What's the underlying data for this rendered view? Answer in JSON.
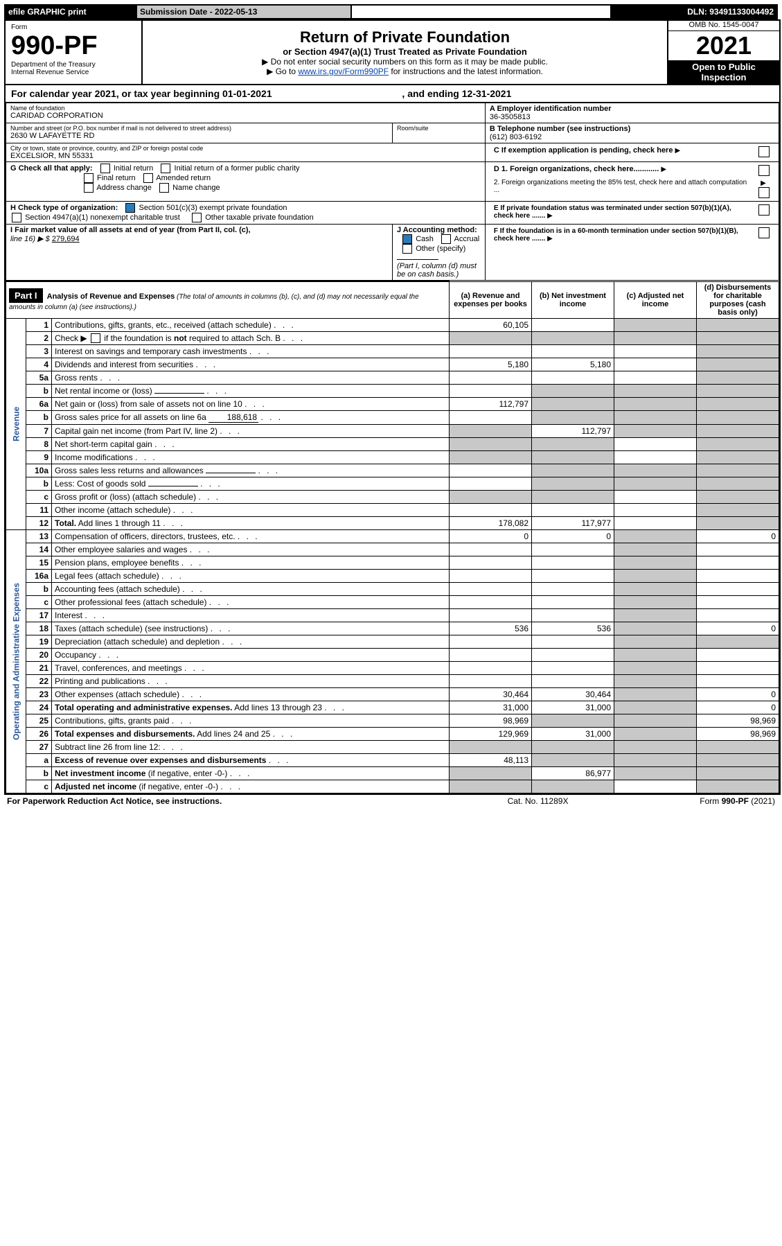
{
  "topbar": {
    "efile": "efile GRAPHIC print",
    "submission_label": "Submission Date - 2022-05-13",
    "dln": "DLN: 93491133004492"
  },
  "header": {
    "form_word": "Form",
    "form_no": "990-PF",
    "dept": "Department of the Treasury",
    "irs": "Internal Revenue Service",
    "title": "Return of Private Foundation",
    "subtitle": "or Section 4947(a)(1) Trust Treated as Private Foundation",
    "inst1": "▶ Do not enter social security numbers on this form as it may be made public.",
    "inst2_pre": "▶ Go to ",
    "inst2_link": "www.irs.gov/Form990PF",
    "inst2_post": " for instructions and the latest information.",
    "omb": "OMB No. 1545-0047",
    "year": "2021",
    "open_pub": "Open to Public Inspection"
  },
  "calendar": {
    "text_pre": "For calendar year 2021, or tax year beginning ",
    "begin": "01-01-2021",
    "mid": ", and ending ",
    "end": "12-31-2021"
  },
  "id_block": {
    "name_lbl": "Name of foundation",
    "name": "CARIDAD CORPORATION",
    "addr_lbl": "Number and street (or P.O. box number if mail is not delivered to street address)",
    "addr": "2630 W LAFAYETTE RD",
    "room_lbl": "Room/suite",
    "city_lbl": "City or town, state or province, country, and ZIP or foreign postal code",
    "city": "EXCELSIOR, MN  55331",
    "a_lbl": "A Employer identification number",
    "a_val": "36-3505813",
    "b_lbl": "B Telephone number (see instructions)",
    "b_val": "(612) 803-6192",
    "c_lbl": "C If exemption application is pending, check here",
    "d1_lbl": "D 1. Foreign organizations, check here............",
    "d2_lbl": "2. Foreign organizations meeting the 85% test, check here and attach computation ...",
    "e_lbl": "E  If private foundation status was terminated under section 507(b)(1)(A), check here .......",
    "f_lbl": "F  If the foundation is in a 60-month termination under section 507(b)(1)(B), check here .......",
    "g_lbl": "G Check all that apply:",
    "g_opts": [
      "Initial return",
      "Initial return of a former public charity",
      "Final return",
      "Amended return",
      "Address change",
      "Name change"
    ],
    "h_lbl": "H Check type of organization:",
    "h_opt1": "Section 501(c)(3) exempt private foundation",
    "h_opt2": "Section 4947(a)(1) nonexempt charitable trust",
    "h_opt3": "Other taxable private foundation",
    "i_lbl": "I Fair market value of all assets at end of year (from Part II, col. (c),",
    "i_line": "line 16) ▶ $",
    "i_val": "279,694",
    "j_lbl": "J Accounting method:",
    "j_cash": "Cash",
    "j_accrual": "Accrual",
    "j_other": "Other (specify)",
    "j_note": "(Part I, column (d) must be on cash basis.)"
  },
  "part1": {
    "label": "Part I",
    "title": "Analysis of Revenue and Expenses",
    "title_note": " (The total of amounts in columns (b), (c), and (d) may not necessarily equal the amounts in column (a) (see instructions).)",
    "col_a": "(a)   Revenue and expenses per books",
    "col_b": "(b)   Net investment income",
    "col_c": "(c)   Adjusted net income",
    "col_d": "(d)  Disbursements for charitable purposes (cash basis only)"
  },
  "side": {
    "revenue": "Revenue",
    "expenses": "Operating and Administrative Expenses"
  },
  "rows": [
    {
      "n": "1",
      "d": "g",
      "a": "60,105",
      "b": "",
      "c": "g"
    },
    {
      "n": "2",
      "d": "g",
      "a": "g",
      "b": "g",
      "c": "g",
      "nob": true
    },
    {
      "n": "3",
      "d": "g",
      "a": "",
      "b": "",
      "c": ""
    },
    {
      "n": "4",
      "d": "g",
      "a": "5,180",
      "b": "5,180",
      "c": ""
    },
    {
      "n": "5a",
      "d": "g",
      "a": "",
      "b": "",
      "c": ""
    },
    {
      "n": "b",
      "d": "g",
      "a": "g",
      "b": "g",
      "c": "g",
      "inline": true
    },
    {
      "n": "6a",
      "d": "g",
      "a": "112,797",
      "b": "g",
      "c": "g"
    },
    {
      "n": "b",
      "d": "g",
      "a": "g",
      "b": "g",
      "c": "g",
      "inline": true,
      "inlineval": "188,618"
    },
    {
      "n": "7",
      "d": "g",
      "a": "g",
      "b": "112,797",
      "c": "g"
    },
    {
      "n": "8",
      "d": "g",
      "a": "g",
      "b": "g",
      "c": ""
    },
    {
      "n": "9",
      "d": "g",
      "a": "g",
      "b": "g",
      "c": ""
    },
    {
      "n": "10a",
      "d": "g",
      "a": "g",
      "b": "g",
      "c": "g",
      "inline": true
    },
    {
      "n": "b",
      "d": "g",
      "a": "g",
      "b": "g",
      "c": "g",
      "inline": true
    },
    {
      "n": "c",
      "d": "g",
      "a": "g",
      "b": "g",
      "c": ""
    },
    {
      "n": "11",
      "d": "g",
      "a": "",
      "b": "",
      "c": ""
    },
    {
      "n": "12",
      "d": "g",
      "a": "178,082",
      "b": "117,977",
      "c": "",
      "bold": true
    }
  ],
  "rows2": [
    {
      "n": "13",
      "d": "0",
      "a": "0",
      "b": "0",
      "c": "g"
    },
    {
      "n": "14",
      "d": "",
      "a": "",
      "b": "",
      "c": "g"
    },
    {
      "n": "15",
      "d": "",
      "a": "",
      "b": "",
      "c": "g"
    },
    {
      "n": "16a",
      "d": "",
      "a": "",
      "b": "",
      "c": "g"
    },
    {
      "n": "b",
      "d": "",
      "a": "",
      "b": "",
      "c": "g"
    },
    {
      "n": "c",
      "d": "",
      "a": "",
      "b": "",
      "c": "g"
    },
    {
      "n": "17",
      "d": "",
      "a": "",
      "b": "",
      "c": "g"
    },
    {
      "n": "18",
      "d": "0",
      "a": "536",
      "b": "536",
      "c": "g"
    },
    {
      "n": "19",
      "d": "g",
      "a": "",
      "b": "",
      "c": "g"
    },
    {
      "n": "20",
      "d": "",
      "a": "",
      "b": "",
      "c": "g"
    },
    {
      "n": "21",
      "d": "",
      "a": "",
      "b": "",
      "c": "g"
    },
    {
      "n": "22",
      "d": "",
      "a": "",
      "b": "",
      "c": "g"
    },
    {
      "n": "23",
      "d": "0",
      "a": "30,464",
      "b": "30,464",
      "c": "g"
    },
    {
      "n": "24",
      "d": "0",
      "a": "31,000",
      "b": "31,000",
      "c": "g",
      "bold": true
    },
    {
      "n": "25",
      "d": "98,969",
      "a": "98,969",
      "b": "g",
      "c": "g"
    },
    {
      "n": "26",
      "d": "98,969",
      "a": "129,969",
      "b": "31,000",
      "c": "g",
      "bold": true
    },
    {
      "n": "27",
      "d": "g",
      "a": "g",
      "b": "g",
      "c": "g"
    },
    {
      "n": "a",
      "d": "g",
      "a": "48,113",
      "b": "g",
      "c": "g",
      "bold": true
    },
    {
      "n": "b",
      "d": "g",
      "a": "g",
      "b": "86,977",
      "c": "g",
      "bold": true
    },
    {
      "n": "c",
      "d": "g",
      "a": "g",
      "b": "g",
      "c": "",
      "bold": true
    }
  ],
  "footer": {
    "left": "For Paperwork Reduction Act Notice, see instructions.",
    "mid": "Cat. No. 11289X",
    "right": "Form 990-PF (2021)"
  }
}
